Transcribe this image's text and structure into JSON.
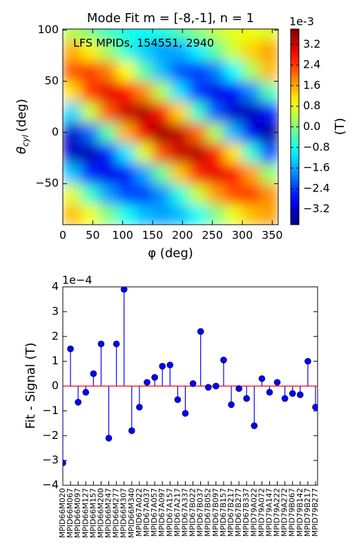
{
  "chart_data": [
    {
      "type": "heatmap",
      "title": "Mode Fit m = [-8,-1], n = 1",
      "annotation": "LFS MPIDs, 154551, 2940",
      "xlabel": "φ (deg)",
      "ylabel": {
        "symbol": "θ",
        "subscript": "cyl",
        "unit": "(deg)"
      },
      "colormap": "jet",
      "x": [
        15,
        45,
        75,
        105,
        135,
        165,
        195,
        225,
        255,
        285,
        315,
        345
      ],
      "y": [
        -80,
        -60,
        -40,
        -20,
        0,
        20,
        40,
        60,
        80,
        100
      ],
      "z": [
        [
          1.46,
          0.86,
          0.03,
          -0.81,
          -1.43,
          -1.67,
          -1.46,
          -0.86,
          -0.03,
          0.81,
          1.43,
          1.67
        ],
        [
          0.71,
          -0.55,
          -1.66,
          -2.32,
          -2.37,
          -1.78,
          -0.71,
          0.55,
          1.66,
          2.32,
          2.37,
          1.78
        ],
        [
          -1.38,
          -2.56,
          -3.05,
          -2.72,
          -1.66,
          -0.16,
          1.38,
          2.56,
          3.05,
          2.72,
          1.66,
          0.16
        ],
        [
          -3.27,
          -3.4,
          -2.61,
          -1.13,
          0.66,
          2.27,
          3.27,
          3.4,
          2.61,
          1.13,
          -0.66,
          -2.27
        ],
        [
          -3.26,
          -2.07,
          -0.31,
          1.52,
          2.95,
          3.59,
          3.26,
          2.07,
          0.31,
          -1.52,
          -2.95,
          -3.59
        ],
        [
          -1.24,
          0.54,
          2.18,
          3.23,
          3.42,
          2.69,
          1.24,
          -0.54,
          -2.18,
          -3.23,
          -3.42,
          -2.69
        ],
        [
          1.19,
          2.44,
          3.03,
          2.81,
          1.84,
          0.37,
          -1.19,
          -2.44,
          -3.03,
          -2.81,
          -1.84,
          -0.37
        ],
        [
          2.24,
          2.41,
          1.94,
          0.95,
          -0.3,
          -1.46,
          -2.24,
          -2.41,
          -1.94,
          -0.95,
          0.3,
          1.46
        ],
        [
          1.56,
          1.05,
          0.26,
          -0.6,
          -1.3,
          -1.65,
          -1.56,
          -1.05,
          -0.26,
          0.6,
          1.3,
          1.65
        ],
        [
          0.36,
          -0.07,
          -0.49,
          -0.77,
          -0.85,
          -0.7,
          -0.36,
          0.07,
          0.49,
          0.77,
          0.85,
          0.7
        ]
      ],
      "xlim": [
        0,
        360
      ],
      "xticks": [
        0,
        50,
        100,
        150,
        200,
        250,
        300,
        350
      ],
      "ylim": [
        -90,
        101
      ],
      "yticks": [
        {
          "value": -50,
          "label": "−50"
        },
        0,
        50,
        100
      ],
      "colorbar": {
        "label": "(T)",
        "offset": "1e-3",
        "clim": [
          -3.8,
          3.8
        ],
        "ticks": [
          3.2,
          2.4,
          1.6,
          0.8,
          {
            "value": 0,
            "label": "0.0"
          },
          {
            "value": -0.8,
            "label": "−0.8"
          },
          {
            "value": -1.6,
            "label": "−1.6"
          },
          {
            "value": -2.4,
            "label": "−2.4"
          },
          {
            "value": -3.2,
            "label": "−3.2"
          }
        ]
      }
    },
    {
      "type": "stem",
      "ylabel": "Fit - Signal (T)",
      "offset": "1e−4",
      "color": "#0000ff",
      "baseline_color": "#ff0000",
      "categories": [
        "MPID66M020",
        "MPID66M067",
        "MPID66M097",
        "MPID66M127",
        "MPID66M157",
        "MPID66M200",
        "MPID66M247",
        "MPID66M277",
        "MPID66M307",
        "MPID66M340",
        "MPID67A022",
        "MPID67A037",
        "MPID67A057",
        "MPID67A097",
        "MPID67A157",
        "MPID67A217",
        "MPID67A337",
        "MPID67B022",
        "MPID67B037",
        "MPID67B052",
        "MPID67B097",
        "MPID67B157",
        "MPID67B217",
        "MPID67B277",
        "MPID67B337",
        "MPID79A022",
        "MPID79A072",
        "MPID79A147",
        "MPID79A222",
        "MPID79A272",
        "MPID79B067",
        "MPID79B142",
        "MPID79B217",
        "MPID79B277"
      ],
      "values": [
        -3.1,
        1.5,
        -0.65,
        -0.25,
        0.5,
        1.7,
        -2.1,
        1.7,
        3.9,
        -1.8,
        -0.85,
        0.15,
        0.35,
        0.8,
        0.85,
        -0.55,
        -1.1,
        0.1,
        2.2,
        -0.05,
        0,
        1.05,
        -0.75,
        -0.1,
        -0.5,
        -1.6,
        0.3,
        -0.25,
        0.15,
        -0.5,
        -0.3,
        -0.35,
        1.0,
        -0.85
      ],
      "ylim": [
        -4,
        4
      ],
      "yticks": [
        {
          "value": -4,
          "label": "−4"
        },
        {
          "value": -3,
          "label": "−3"
        },
        {
          "value": -2,
          "label": "−2"
        },
        {
          "value": -1,
          "label": "−1"
        },
        0,
        1,
        2,
        3,
        4
      ]
    }
  ]
}
